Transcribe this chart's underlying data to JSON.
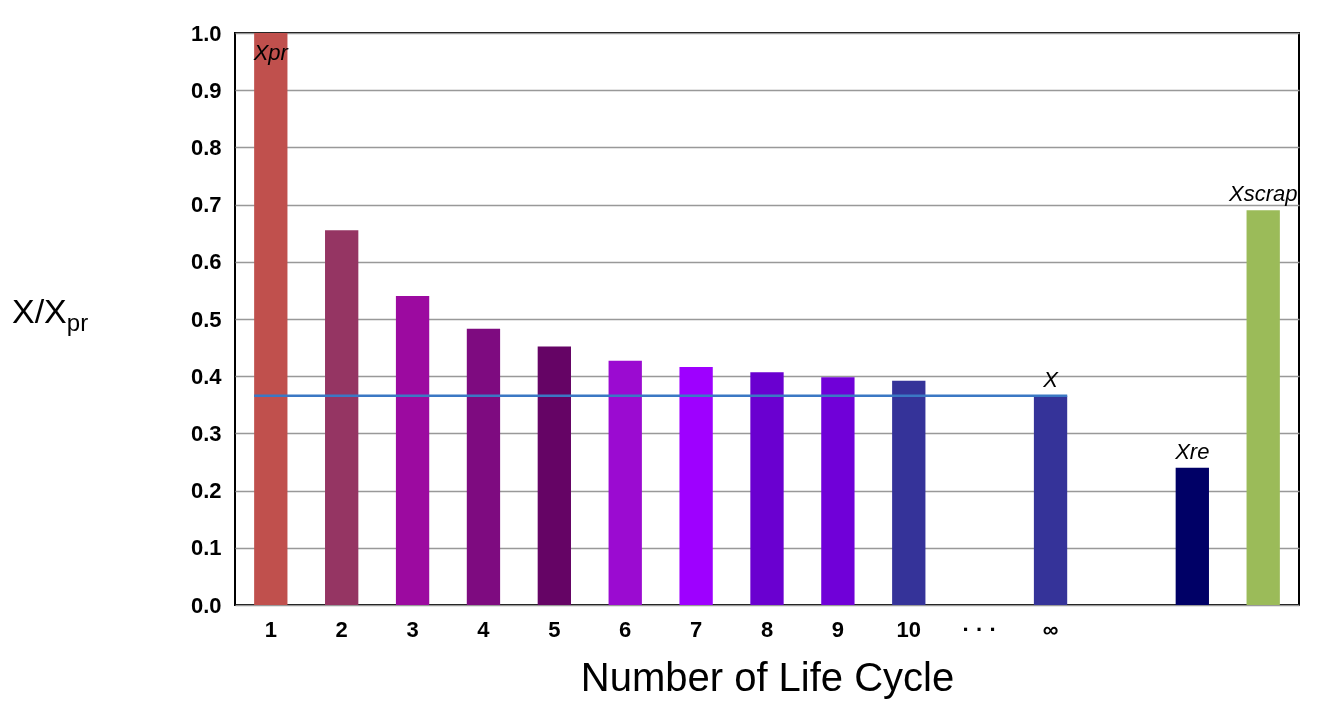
{
  "chart_data": {
    "type": "bar",
    "xlabel": "Number of Life Cycle",
    "ylabel": "X/X$_{pr}$",
    "categories": [
      "1",
      "2",
      "3",
      "4",
      "5",
      "6",
      "7",
      "8",
      "9",
      "10",
      "· · ·",
      "∞",
      null,
      null,
      null
    ],
    "values": [
      1.0,
      0.655,
      0.54,
      0.483,
      0.452,
      0.427,
      0.416,
      0.407,
      0.398,
      0.392,
      null,
      0.366,
      null,
      0.24,
      0.69
    ],
    "colors": [
      "#c0504d",
      "#953563",
      "#9c0aa0",
      "#7e0b80",
      "#650465",
      "#9b0bd1",
      "#9e00ff",
      "#6a00d0",
      "#7000d8",
      "#353399",
      null,
      "#353399",
      null,
      "#000066",
      "#9bbb59"
    ],
    "value_labels": [
      "Xpr",
      null,
      null,
      null,
      null,
      null,
      null,
      null,
      null,
      null,
      null,
      "X",
      null,
      "Xre",
      "Xscrap"
    ],
    "ylim": [
      0,
      1.0
    ],
    "yticks": [
      {
        "value": 0,
        "label": "0.0"
      },
      0.1,
      0.2,
      0.3,
      0.4,
      0.5,
      0.6,
      0.7,
      0.8,
      0.9,
      {
        "value": 1,
        "label": "1.0"
      }
    ],
    "ref_lines": [
      {
        "axis": "y",
        "value": 0.366,
        "color": "#3b78c4"
      }
    ],
    "grid": "y"
  }
}
